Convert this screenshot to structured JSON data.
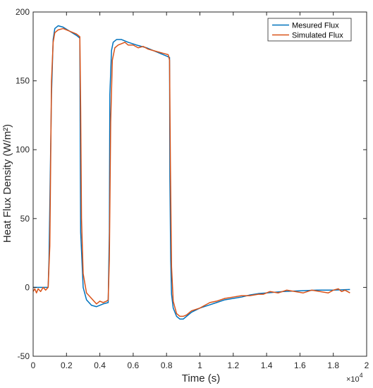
{
  "chart_data": {
    "type": "line",
    "xlabel": "Time (s)",
    "ylabel": "Heat Flux Density (W/m²)",
    "xlim": [
      0,
      2
    ],
    "ylim": [
      -50,
      200
    ],
    "x_multiplier": "×10",
    "x_exponent": "4",
    "xticks": [
      0,
      0.2,
      0.4,
      0.6,
      0.8,
      1,
      1.2,
      1.4,
      1.6,
      1.8,
      2
    ],
    "xtick_labels": [
      "0",
      "0.2",
      "0.4",
      "0.6",
      "0.8",
      "1",
      "1.2",
      "1.4",
      "1.6",
      "1.8",
      "2"
    ],
    "yticks": [
      -50,
      0,
      50,
      100,
      150,
      200
    ],
    "ytick_labels": [
      "-50",
      "0",
      "50",
      "100",
      "150",
      "200"
    ],
    "grid": false,
    "legend_position": "top-right",
    "series": [
      {
        "name": "Mesured Flux",
        "color": "#0072BD",
        "x": [
          0,
          0.09,
          0.095,
          0.11,
          0.12,
          0.13,
          0.15,
          0.18,
          0.22,
          0.26,
          0.28,
          0.282,
          0.285,
          0.3,
          0.32,
          0.35,
          0.38,
          0.42,
          0.45,
          0.457,
          0.46,
          0.47,
          0.48,
          0.5,
          0.53,
          0.57,
          0.62,
          0.68,
          0.74,
          0.8,
          0.818,
          0.82,
          0.825,
          0.83,
          0.84,
          0.86,
          0.88,
          0.9,
          0.92,
          0.95,
          1.0,
          1.05,
          1.1,
          1.15,
          1.2,
          1.25,
          1.3,
          1.35,
          1.4,
          1.5,
          1.6,
          1.7,
          1.8,
          1.9
        ],
        "y": [
          0,
          0,
          20,
          140,
          180,
          188,
          190,
          189,
          186,
          183,
          181,
          120,
          40,
          0,
          -9,
          -13,
          -14,
          -12,
          -11,
          40,
          140,
          172,
          178,
          180,
          180,
          178,
          176,
          174,
          171,
          168,
          167,
          80,
          20,
          -5,
          -15,
          -21,
          -23,
          -23,
          -21,
          -18,
          -15,
          -13,
          -11,
          -9,
          -8,
          -7,
          -5.5,
          -4.5,
          -4,
          -3,
          -2.5,
          -2,
          -2,
          -1.5
        ]
      },
      {
        "name": "Simulated Flux",
        "color": "#D95319",
        "x": [
          0,
          0.01,
          0.02,
          0.03,
          0.045,
          0.06,
          0.075,
          0.09,
          0.1,
          0.11,
          0.12,
          0.13,
          0.15,
          0.18,
          0.22,
          0.26,
          0.28,
          0.285,
          0.29,
          0.3,
          0.32,
          0.35,
          0.38,
          0.4,
          0.42,
          0.44,
          0.45,
          0.457,
          0.465,
          0.475,
          0.49,
          0.51,
          0.53,
          0.55,
          0.57,
          0.6,
          0.63,
          0.66,
          0.69,
          0.72,
          0.75,
          0.78,
          0.81,
          0.818,
          0.823,
          0.83,
          0.84,
          0.86,
          0.88,
          0.9,
          0.92,
          0.95,
          1.0,
          1.03,
          1.06,
          1.1,
          1.15,
          1.2,
          1.25,
          1.3,
          1.35,
          1.38,
          1.42,
          1.47,
          1.52,
          1.57,
          1.62,
          1.67,
          1.72,
          1.77,
          1.8,
          1.83,
          1.85,
          1.87,
          1.9
        ],
        "y": [
          -3,
          -1,
          -4,
          -1,
          -3,
          0,
          -2,
          0,
          30,
          150,
          178,
          185,
          187,
          188,
          186,
          184,
          182,
          130,
          50,
          10,
          -4,
          -8,
          -12,
          -10,
          -11,
          -10,
          -9,
          20,
          120,
          165,
          174,
          176,
          177,
          178,
          176,
          176,
          174,
          175,
          173,
          172,
          171,
          170,
          169,
          165,
          90,
          15,
          -10,
          -19,
          -21,
          -21,
          -20,
          -17,
          -15,
          -13,
          -11,
          -10,
          -8,
          -7,
          -6,
          -6,
          -5,
          -5,
          -3,
          -4,
          -2,
          -3,
          -4,
          -2,
          -3,
          -4,
          -2,
          -1,
          -3,
          -2,
          -4
        ]
      }
    ]
  }
}
